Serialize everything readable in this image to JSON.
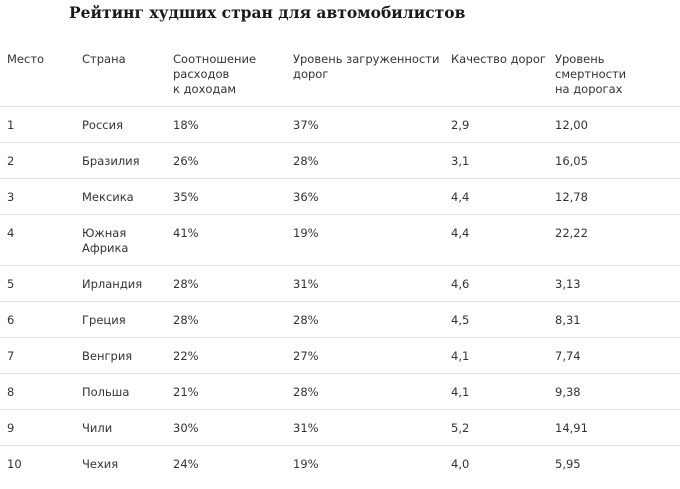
{
  "title": "Рейтинг худших стран для автомобилистов",
  "columns": [
    "Место",
    "Страна",
    "Соотношение\nрасходов\nк доходам",
    "Уровень загруженности\nдорог",
    "Качество дорог",
    "Уровень смертности\nна дорогах"
  ],
  "rows": [
    [
      "1",
      "Россия",
      "18%",
      "37%",
      "2,9",
      "12,00"
    ],
    [
      "2",
      "Бразилия",
      "26%",
      "28%",
      "3,1",
      "16,05"
    ],
    [
      "3",
      "Мексика",
      "35%",
      "36%",
      "4,4",
      "12,78"
    ],
    [
      "4",
      "Южная\nАфрика",
      "41%",
      "19%",
      "4,4",
      "22,22"
    ],
    [
      "5",
      "Ирландия",
      "28%",
      "31%",
      "4,6",
      "3,13"
    ],
    [
      "6",
      "Греция",
      "28%",
      "28%",
      "4,5",
      "8,31"
    ],
    [
      "7",
      "Венгрия",
      "22%",
      "27%",
      "4,1",
      "7,74"
    ],
    [
      "8",
      "Польша",
      "21%",
      "28%",
      "4,1",
      "9,38"
    ],
    [
      "9",
      "Чили",
      "30%",
      "31%",
      "5,2",
      "14,91"
    ],
    [
      "10",
      "Чехия",
      "24%",
      "19%",
      "4,0",
      "5,95"
    ]
  ]
}
